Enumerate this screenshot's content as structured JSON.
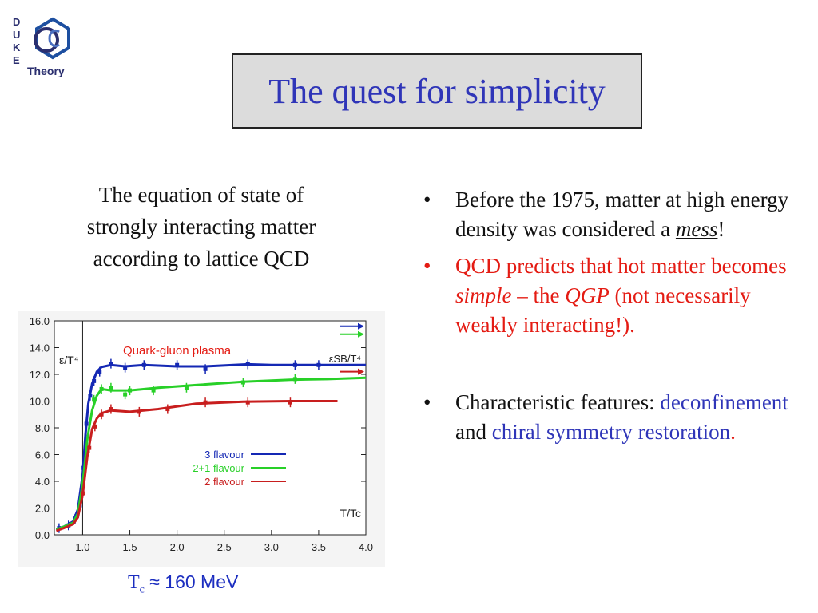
{
  "logo": {
    "letters": [
      "D",
      "U",
      "K",
      "E"
    ],
    "word": "Theory",
    "colors": {
      "text": "#2b2f6f",
      "accent": "#1d4fa0"
    }
  },
  "title": "The quest for simplicity",
  "caption": {
    "lines": [
      "The equation of state of",
      "strongly interacting matter",
      "according to lattice QCD"
    ]
  },
  "tc_note": {
    "t": "T",
    "sub": "c",
    "rest": " ≈ 160 MeV"
  },
  "bullets": [
    {
      "text_before": "Before the 1975, matter at high energy density was considered a ",
      "emphasis": "mess",
      "text_after": "!"
    },
    {
      "text_before": "QCD predicts that hot matter becomes ",
      "emphasis1": "simple",
      "text_mid": " – the ",
      "emphasis2": "QGP",
      "text_after": " (not necessarily weakly interacting!)."
    },
    {
      "text_before": "Characteristic features: ",
      "highlight1": "deconfinement",
      "text_mid": " and ",
      "highlight2": "chiral symmetry restoration",
      "text_after": "."
    }
  ],
  "chart_data": {
    "type": "line",
    "xlim": [
      0.7,
      4.0
    ],
    "ylim": [
      0.0,
      16.0
    ],
    "xticks": [
      "1.0",
      "1.5",
      "2.0",
      "2.5",
      "3.0",
      "3.5",
      "4.0"
    ],
    "yticks": [
      "0.0",
      "2.0",
      "4.0",
      "6.0",
      "8.0",
      "10.0",
      "12.0",
      "14.0",
      "16.0"
    ],
    "ylabel": "ε/T⁴",
    "xlabel": "T/Tc",
    "vline_x": 1.0,
    "annotation": "Quark-gluon plasma",
    "sb_label": "εSB/T⁴",
    "legend_position": "center-right",
    "grid": false,
    "series": [
      {
        "name": "3 flavour",
        "color": "#1428b4",
        "x": [
          0.72,
          0.8,
          0.9,
          0.95,
          1.0,
          1.03,
          1.06,
          1.1,
          1.15,
          1.2,
          1.3,
          1.45,
          1.65,
          2.0,
          2.3,
          2.6,
          2.75,
          3.0,
          3.3,
          3.5,
          3.75,
          4.0
        ],
        "y": [
          0.4,
          0.6,
          1.0,
          1.9,
          4.5,
          7.5,
          9.8,
          11.3,
          12.2,
          12.55,
          12.7,
          12.6,
          12.7,
          12.6,
          12.6,
          12.7,
          12.75,
          12.7,
          12.7,
          12.7,
          12.7,
          12.7
        ],
        "err_x": [
          0.75,
          0.85,
          0.92,
          0.97,
          1.01,
          1.04,
          1.08,
          1.12,
          1.18,
          1.3,
          1.45,
          1.65,
          2.0,
          2.3,
          2.75,
          3.25,
          3.5
        ],
        "err_y": [
          0.5,
          0.7,
          1.2,
          2.2,
          5.0,
          8.3,
          10.4,
          11.5,
          12.2,
          12.8,
          12.5,
          12.7,
          12.7,
          12.4,
          12.75,
          12.7,
          12.7
        ],
        "sb_limit": 15.6
      },
      {
        "name": "2+1 flavour",
        "color": "#28d028",
        "x": [
          0.72,
          0.8,
          0.9,
          0.95,
          1.0,
          1.05,
          1.1,
          1.15,
          1.2,
          1.3,
          1.5,
          1.8,
          2.2,
          2.7,
          3.2,
          3.6,
          4.0
        ],
        "y": [
          0.4,
          0.6,
          0.9,
          1.6,
          3.8,
          7.2,
          9.3,
          10.4,
          10.9,
          10.8,
          10.8,
          11.0,
          11.2,
          11.45,
          11.6,
          11.65,
          11.75
        ],
        "err_x": [
          1.12,
          1.2,
          1.3,
          1.45,
          1.5,
          1.75,
          2.1,
          2.7,
          3.25
        ],
        "err_y": [
          10.1,
          10.9,
          11.0,
          10.5,
          10.8,
          10.8,
          11.0,
          11.4,
          11.65
        ],
        "sb_limit": 15.0
      },
      {
        "name": "2 flavour",
        "color": "#c81e1e",
        "x": [
          0.72,
          0.8,
          0.9,
          0.95,
          1.0,
          1.05,
          1.1,
          1.15,
          1.2,
          1.3,
          1.5,
          1.8,
          2.2,
          2.7,
          3.2,
          3.7
        ],
        "y": [
          0.3,
          0.5,
          0.8,
          1.3,
          3.0,
          5.9,
          7.9,
          8.7,
          9.1,
          9.3,
          9.2,
          9.4,
          9.8,
          9.95,
          10.0,
          10.0
        ],
        "err_x": [
          1.0,
          1.07,
          1.13,
          1.2,
          1.3,
          1.6,
          1.9,
          2.3,
          2.75,
          3.2
        ],
        "err_y": [
          3.1,
          6.5,
          8.1,
          9.0,
          9.4,
          9.2,
          9.4,
          9.9,
          9.9,
          9.9
        ],
        "sb_limit": 12.2
      }
    ]
  }
}
